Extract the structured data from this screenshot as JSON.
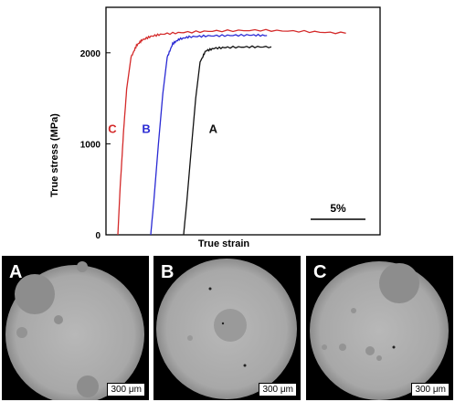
{
  "chart_data": {
    "type": "line",
    "xlabel": "True strain",
    "ylabel": "True stress (MPa)",
    "ylim": [
      0,
      2500
    ],
    "yticks": [
      "0",
      "1000",
      "2000"
    ],
    "y_tick_values": [
      0,
      1000,
      2000
    ],
    "xlim": [
      0,
      21
    ],
    "grid": false,
    "x_axis_note": "strain offset between curves, no numeric x tick labels",
    "scale_bar": {
      "label": "5%",
      "strain": 5
    },
    "series": [
      {
        "name": "C",
        "color": "#d42a2a",
        "x": [
          0.0,
          0.2,
          0.5,
          0.8,
          1.2,
          1.7,
          2.2,
          3.0,
          4.0,
          6.0,
          9.0,
          13.0,
          17.0,
          20.8
        ],
        "y": [
          0,
          500,
          1100,
          1600,
          1950,
          2080,
          2140,
          2180,
          2205,
          2225,
          2240,
          2248,
          2235,
          2215
        ],
        "label_x": -0.9,
        "label_y": 1120
      },
      {
        "name": "B",
        "color": "#2a2ad4",
        "x": [
          3.0,
          3.3,
          3.7,
          4.1,
          4.5,
          5.0,
          5.6,
          6.5,
          8.0,
          10.0,
          12.0,
          13.6
        ],
        "y": [
          0,
          400,
          1000,
          1550,
          1950,
          2100,
          2150,
          2175,
          2185,
          2190,
          2195,
          2190
        ],
        "label_x": 2.2,
        "label_y": 1120
      },
      {
        "name": "A",
        "color": "#111111",
        "x": [
          6.0,
          6.3,
          6.7,
          7.1,
          7.5,
          8.0,
          8.8,
          10.0,
          12.0,
          14.0
        ],
        "y": [
          0,
          380,
          950,
          1500,
          1900,
          2020,
          2050,
          2060,
          2065,
          2065
        ],
        "label_x": 8.3,
        "label_y": 1120
      }
    ]
  },
  "micrographs": [
    {
      "letter": "A",
      "scale_label": "300 μm"
    },
    {
      "letter": "B",
      "scale_label": "300 μm"
    },
    {
      "letter": "C",
      "scale_label": "300 μm"
    }
  ]
}
